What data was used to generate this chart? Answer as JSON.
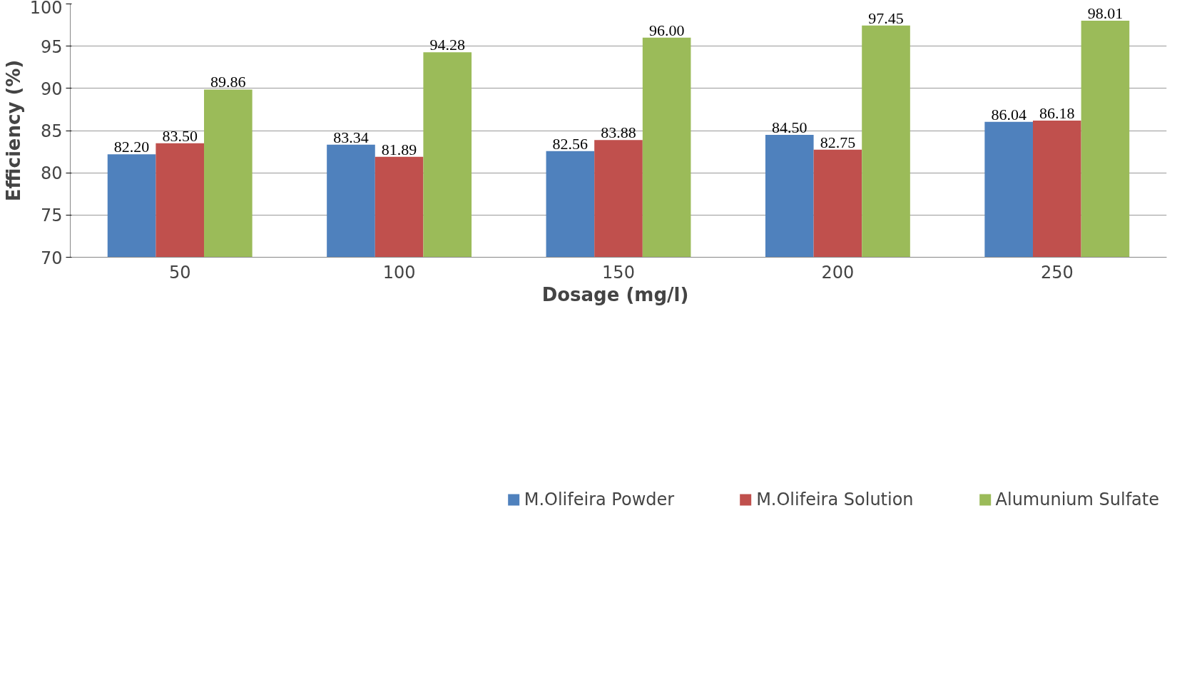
{
  "chart_data": {
    "type": "bar",
    "xlabel": "Dosage  (mg/l)",
    "ylabel": "Efficiency (%)",
    "categories": [
      "50",
      "100",
      "150",
      "200",
      "250"
    ],
    "series": [
      {
        "name": "M.Olifeira Powder",
        "color": "#4f81bd",
        "values": [
          82.2,
          83.34,
          82.56,
          84.5,
          86.04
        ],
        "value_labels": [
          "82.20",
          "83.34",
          "82.56",
          "84.50",
          "86.04"
        ]
      },
      {
        "name": "M.Olifeira Solution",
        "color": "#c0504d",
        "values": [
          83.5,
          81.89,
          83.88,
          82.75,
          86.18
        ],
        "value_labels": [
          "83.50",
          "81.89",
          "83.88",
          "82.75",
          "86.18"
        ]
      },
      {
        "name": "Alumunium Sulfate",
        "color": "#9bbb59",
        "values": [
          89.86,
          94.28,
          96.0,
          97.45,
          98.01
        ],
        "value_labels": [
          "89.86",
          "94.28",
          "96.00",
          "97.45",
          "98.01"
        ]
      }
    ],
    "ylim": [
      70,
      100
    ],
    "yticks": [
      70,
      75,
      80,
      85,
      90,
      95,
      100
    ],
    "grid": "y",
    "legend": "bottom"
  }
}
